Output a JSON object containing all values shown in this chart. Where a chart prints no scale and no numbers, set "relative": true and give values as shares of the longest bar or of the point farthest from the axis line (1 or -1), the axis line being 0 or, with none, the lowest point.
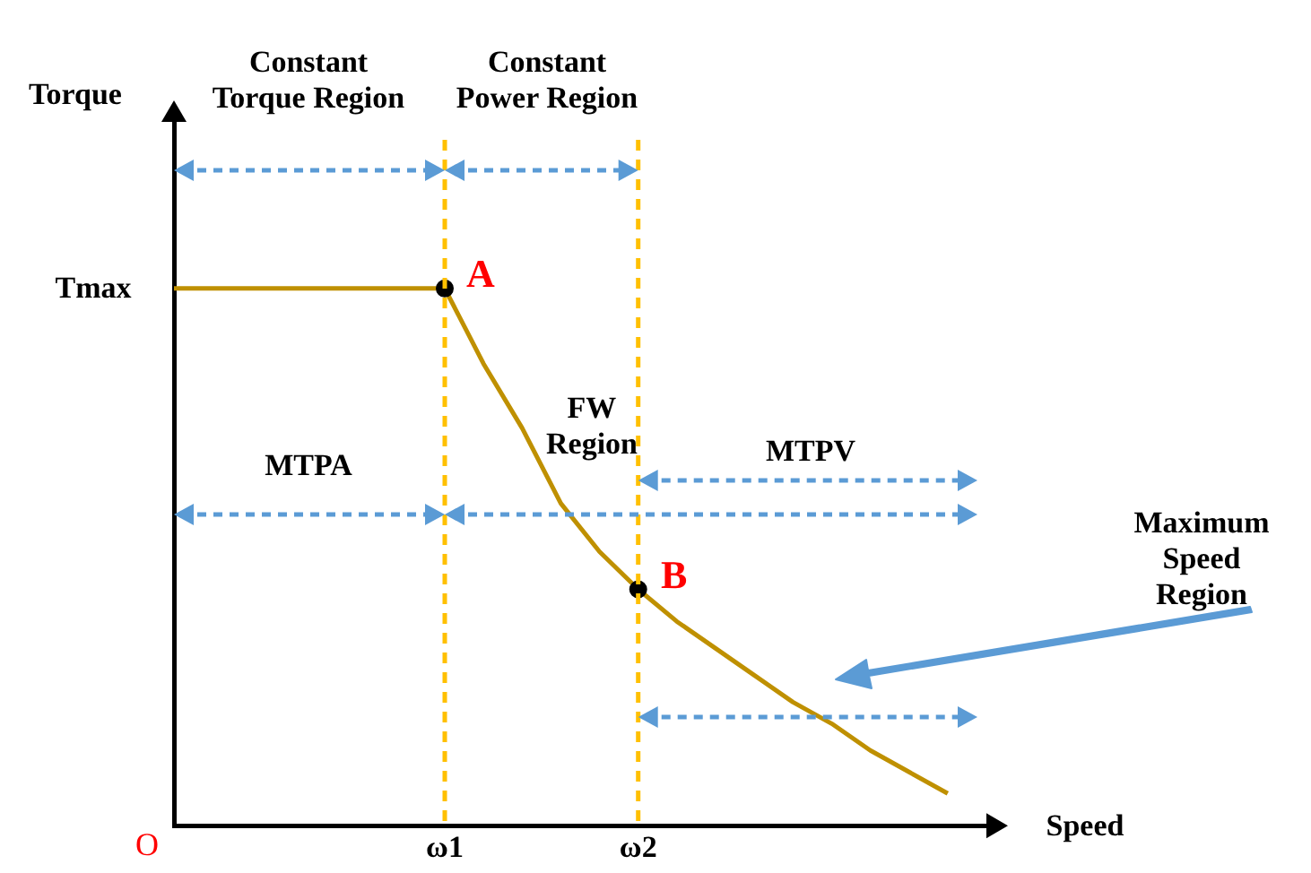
{
  "chart_data": {
    "type": "line",
    "relative": true,
    "xlabel": "Speed",
    "categories": [
      null,
      null,
      null,
      null,
      null,
      null,
      null,
      "ω1",
      null,
      null,
      null,
      null,
      "ω2",
      null,
      null,
      null,
      null,
      null,
      null,
      null,
      null,
      null
    ],
    "series": [
      {
        "color": "#bf9000",
        "marker": "none",
        "values": [
          1,
          1,
          1,
          1,
          1,
          1,
          1,
          1,
          0.86,
          0.74,
          0.6,
          0.51,
          0.44,
          0.38,
          0.33,
          0.28,
          0.23,
          0.19,
          0.14,
          0.1,
          0.06,
          null
        ]
      },
      {
        "type": "scatter",
        "color": "#000000",
        "marker": "circle",
        "values": [
          null,
          null,
          null,
          null,
          null,
          null,
          null,
          1,
          null,
          null,
          null,
          null,
          0.44,
          null,
          null,
          null,
          null,
          null,
          null,
          null,
          null,
          null
        ]
      }
    ],
    "ref_lines": [
      {
        "axis": "x",
        "value": "ω1",
        "label": null,
        "color": "#ffc000",
        "line_style": "dashed"
      },
      {
        "axis": "x",
        "value": "ω2",
        "label": null,
        "color": "#ffc000",
        "line_style": "dashed"
      }
    ],
    "annotations": [
      {
        "text": "A",
        "x": "ω1",
        "y": 1
      },
      {
        "text": "B",
        "x": "ω2",
        "y": 0.44
      },
      "Torque",
      "Tmax",
      "O",
      "Constant Torque Region",
      "Constant Power Region",
      "MTPA",
      "FW Region",
      "MTPV",
      "Maximum Speed Region"
    ],
    "grid": false,
    "legend": false
  }
}
